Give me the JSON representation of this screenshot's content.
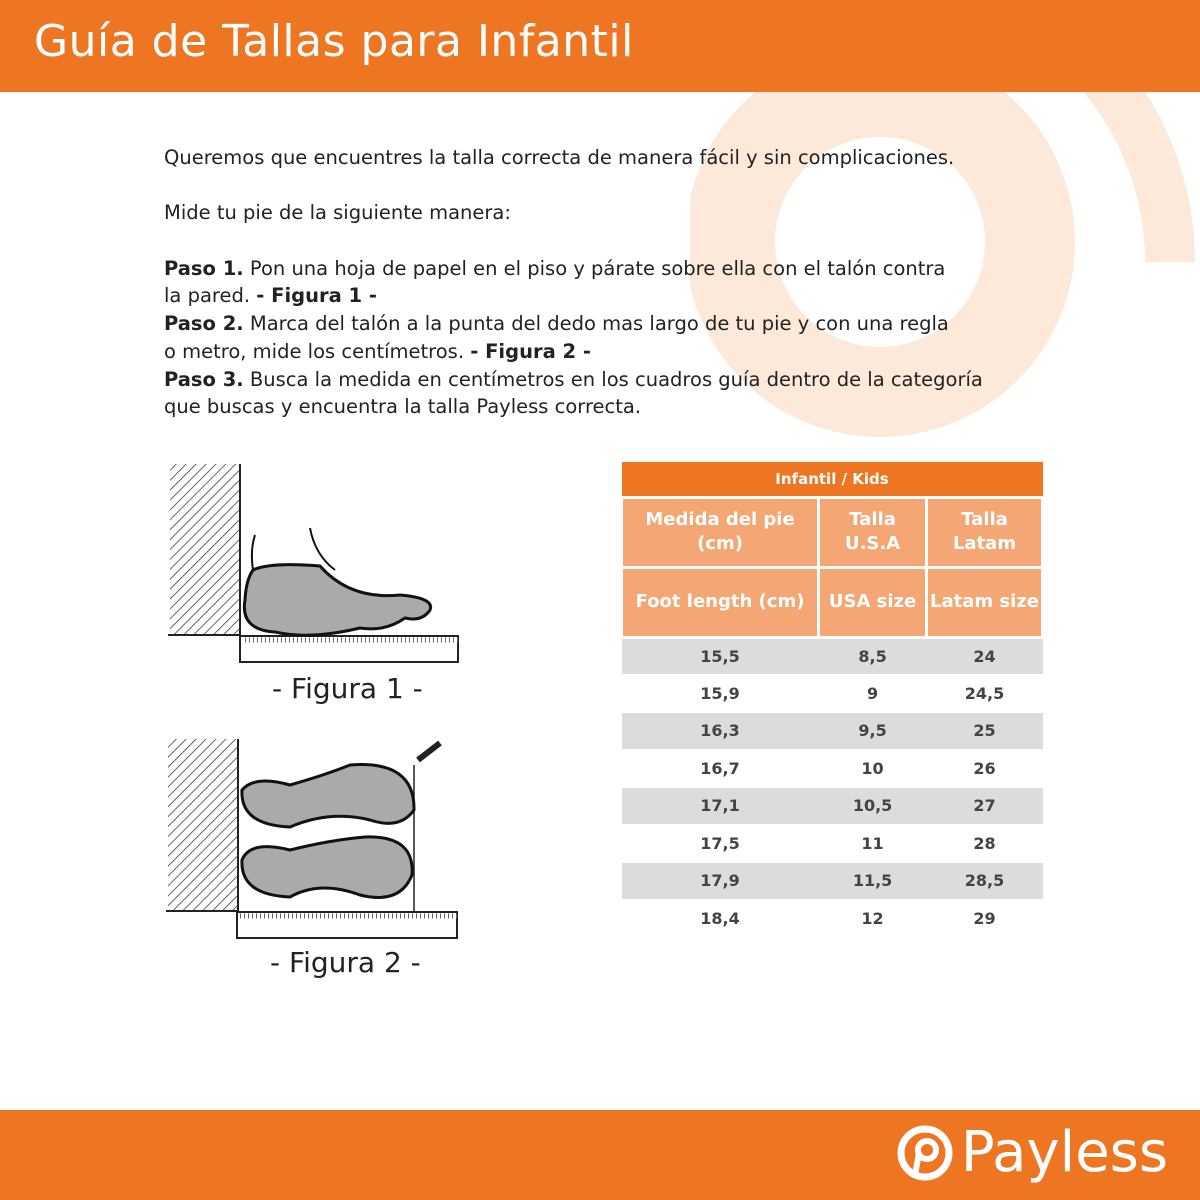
{
  "header": {
    "title": "Guía de Tallas para Infantil"
  },
  "intro": {
    "line1": "Queremos que encuentres la talla correcta de manera fácil y sin complicaciones.",
    "line2": "Mide tu pie de la siguiente manera:",
    "steps": [
      {
        "label": "Paso 1.",
        "text1": " Pon una hoja de papel en el piso y párate sobre ella con el talón contra",
        "text2": "la pared. ",
        "ref": "- Figura 1 -"
      },
      {
        "label": "Paso 2.",
        "text1": " Marca del talón a la punta del dedo mas largo de tu pie y con una regla",
        "text2": "o metro, mide los centímetros. ",
        "ref": "- Figura 2 -"
      },
      {
        "label": "Paso 3.",
        "text1": " Busca la medida en centímetros en los cuadros guía dentro de la categoría",
        "text2": "que buscas y encuentra la talla Payless correcta.",
        "ref": ""
      }
    ]
  },
  "figures": {
    "fig1": "- Figura 1 -",
    "fig2": "- Figura 2 -"
  },
  "table": {
    "title": "Infantil / Kids",
    "headers_es": [
      "Medida del pie (cm)",
      "Talla U.S.A",
      "Talla Latam"
    ],
    "headers_en": [
      "Foot length (cm)",
      "USA size",
      "Latam size"
    ],
    "rows": [
      [
        "15,5",
        "8,5",
        "24"
      ],
      [
        "15,9",
        "9",
        "24,5"
      ],
      [
        "16,3",
        "9,5",
        "25"
      ],
      [
        "16,7",
        "10",
        "26"
      ],
      [
        "17,1",
        "10,5",
        "27"
      ],
      [
        "17,5",
        "11",
        "28"
      ],
      [
        "17,9",
        "11,5",
        "28,5"
      ],
      [
        "18,4",
        "12",
        "29"
      ]
    ]
  },
  "footer": {
    "brand": "Payless"
  },
  "colors": {
    "brand": "#ee7623",
    "header_cell": "#f4a774",
    "row_shade": "#dcdcdc"
  }
}
